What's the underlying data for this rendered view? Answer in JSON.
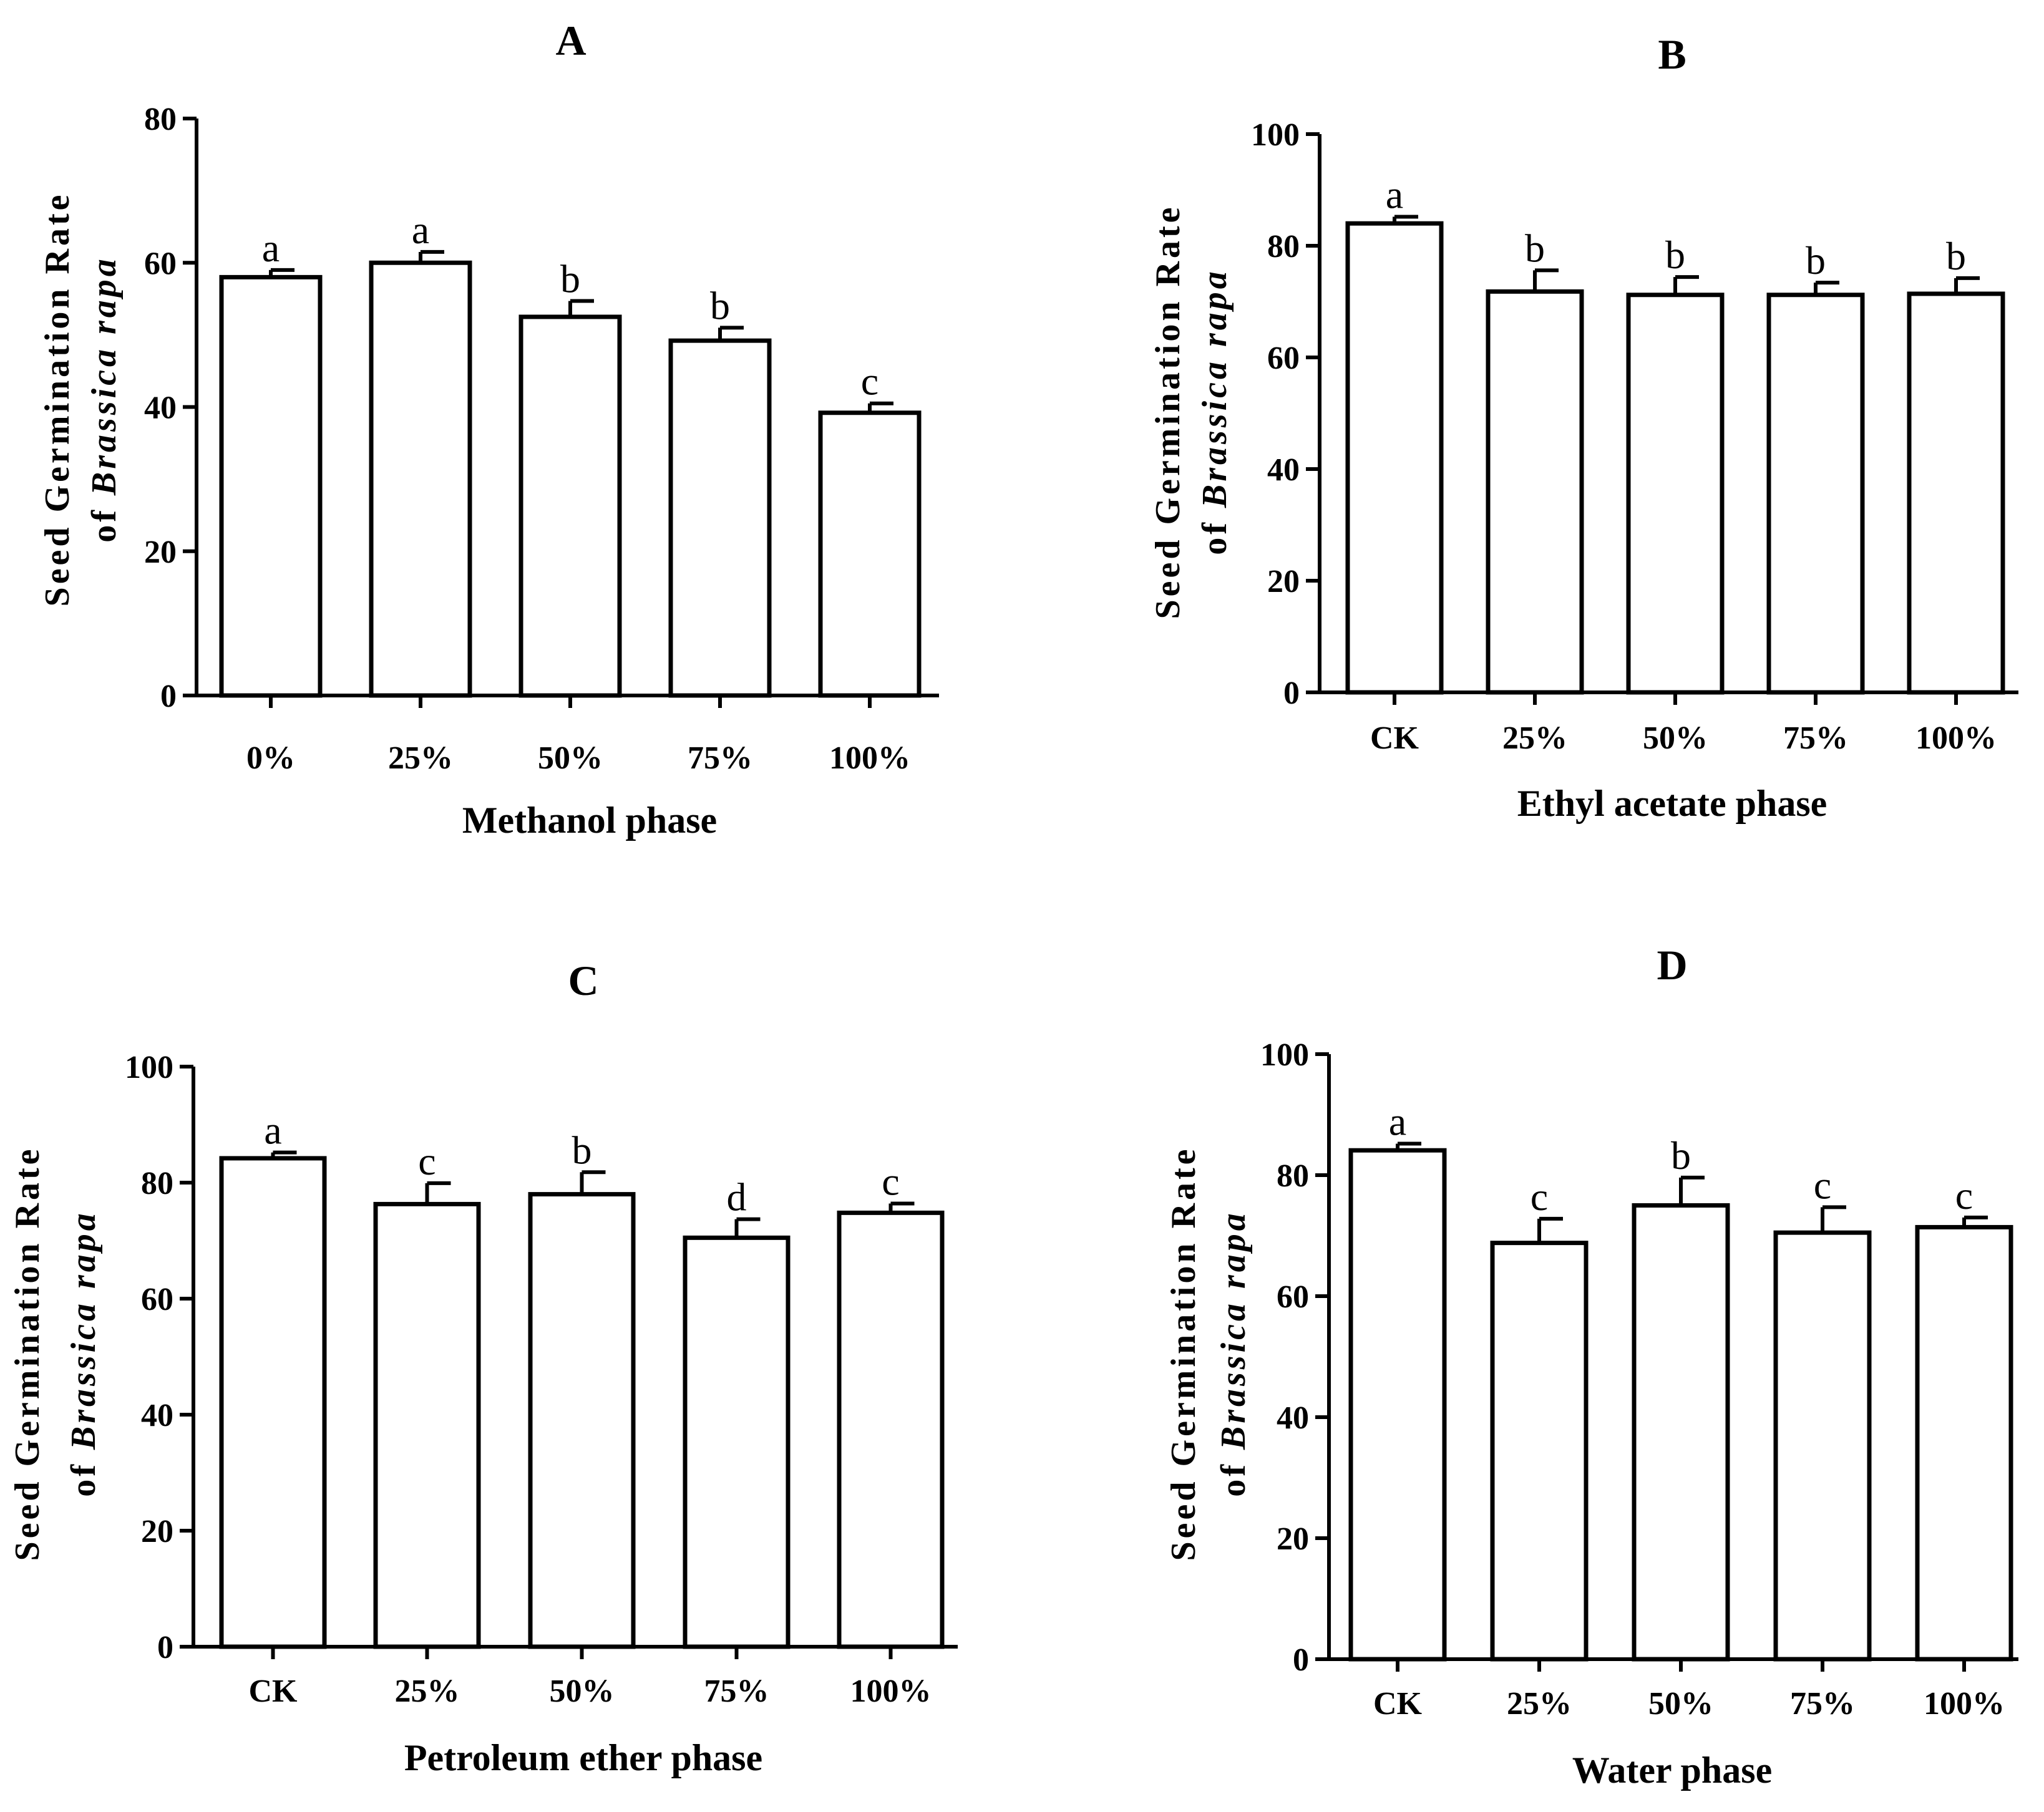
{
  "chart_data": [
    {
      "type": "bar",
      "panel": "A",
      "categories": [
        "0%",
        "25%",
        "50%",
        "75%",
        "100%"
      ],
      "values": [
        58,
        60,
        52.5,
        49.2,
        39.2
      ],
      "errors": [
        1.0,
        1.5,
        2.2,
        1.8,
        1.3
      ],
      "significance": [
        "a",
        "a",
        "b",
        "b",
        "c"
      ],
      "xlabel": "Methanol phase",
      "ylabel_line1": "Seed Germination Rate",
      "ylabel_line2_prefix": "of ",
      "ylabel_line2_italic": "Brassica rapa",
      "ylim": [
        0,
        80
      ],
      "yticks": [
        0,
        20,
        40,
        60,
        80
      ]
    },
    {
      "type": "bar",
      "panel": "B",
      "categories": [
        "CK",
        "25%",
        "50%",
        "75%",
        "100%"
      ],
      "values": [
        84,
        71.8,
        71.2,
        71.2,
        71.4
      ],
      "errors": [
        1.2,
        3.8,
        3.2,
        2.2,
        2.8
      ],
      "significance": [
        "a",
        "b",
        "b",
        "b",
        "b"
      ],
      "xlabel": "Ethyl acetate phase",
      "ylabel_line1": "Seed Germination Rate",
      "ylabel_line2_prefix": "of ",
      "ylabel_line2_italic": "Brassica rapa",
      "ylim": [
        0,
        100
      ],
      "yticks": [
        0,
        20,
        40,
        60,
        80,
        100
      ]
    },
    {
      "type": "bar",
      "panel": "C",
      "categories": [
        "CK",
        "25%",
        "50%",
        "75%",
        "100%"
      ],
      "values": [
        84.2,
        76.3,
        78,
        70.5,
        74.8
      ],
      "errors": [
        1.0,
        3.6,
        3.8,
        3.2,
        1.6
      ],
      "significance": [
        "a",
        "c",
        "b",
        "d",
        "c"
      ],
      "xlabel": "Petroleum ether phase",
      "ylabel_line1": "Seed Germination Rate",
      "ylabel_line2_prefix": "of ",
      "ylabel_line2_italic": "Brassica rapa",
      "ylim": [
        0,
        100
      ],
      "yticks": [
        0,
        20,
        40,
        60,
        80,
        100
      ]
    },
    {
      "type": "bar",
      "panel": "D",
      "categories": [
        "CK",
        "25%",
        "50%",
        "75%",
        "100%"
      ],
      "values": [
        84.1,
        68.8,
        75,
        70.5,
        71.4
      ],
      "errors": [
        1.1,
        4.0,
        4.6,
        4.2,
        1.6
      ],
      "significance": [
        "a",
        "c",
        "b",
        "c",
        "c"
      ],
      "xlabel": "Water phase",
      "ylabel_line1": "Seed Germination Rate",
      "ylabel_line2_prefix": "of ",
      "ylabel_line2_italic": "Brassica rapa",
      "ylim": [
        0,
        100
      ],
      "yticks": [
        0,
        20,
        40,
        60,
        80,
        100
      ]
    }
  ]
}
